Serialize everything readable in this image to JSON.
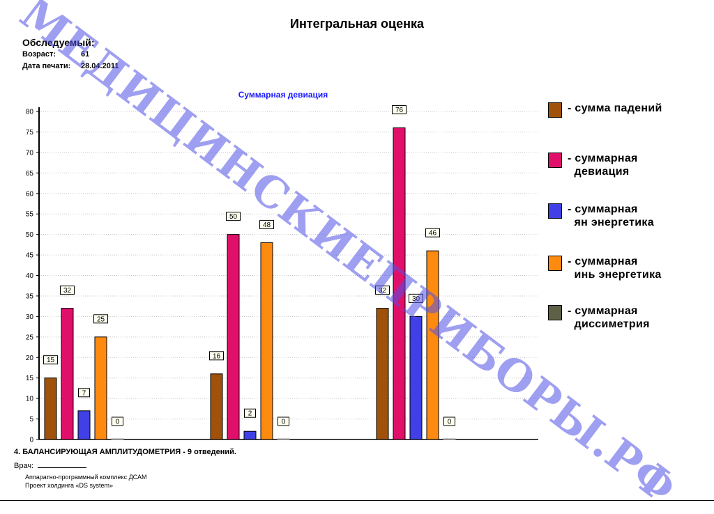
{
  "header": {
    "title": "Интегральная оценка",
    "subject_label": "Обследуемый:",
    "age_label": "Возраст:",
    "age_value": "61",
    "print_date_label": "Дата печати:",
    "print_date_value": "28.04.2011"
  },
  "chart_data": {
    "type": "bar",
    "title": "Суммарная девиация",
    "xlabel": "",
    "ylabel": "",
    "ylim": [
      0,
      80
    ],
    "yticks": [
      0,
      5,
      10,
      15,
      20,
      25,
      30,
      35,
      40,
      45,
      50,
      55,
      60,
      65,
      70,
      75,
      80
    ],
    "grid": "horizontal",
    "legend_placement": "right",
    "groups": 3,
    "series": [
      {
        "name": "- сумма падений",
        "color": "#a0520a",
        "values": [
          15,
          16,
          32
        ]
      },
      {
        "name": "- суммарная\n  девиация",
        "color": "#e0106a",
        "values": [
          32,
          50,
          76
        ]
      },
      {
        "name": "- суммарная\n  ян энергетика",
        "color": "#4040e6",
        "values": [
          7,
          2,
          30
        ]
      },
      {
        "name": "- суммарная\n  инь энергетика",
        "color": "#ff8a10",
        "values": [
          25,
          48,
          46
        ]
      },
      {
        "name": "- суммарная\n  диссиметрия",
        "color": "#5f6147",
        "values": [
          0,
          0,
          0
        ]
      }
    ]
  },
  "footer": {
    "test_line": "4. БАЛАНСИРУЮЩАЯ АМПЛИТУДОМЕТРИЯ - 9 отведений.",
    "doctor_label": "Врач:",
    "complex_name": "Аппаратно-программный комплекс ДСАМ",
    "project_line": "Проект холдинга «DS system»"
  },
  "watermark": "МЕДИЦИНСКИЕПРИБОРЫ.РФ"
}
